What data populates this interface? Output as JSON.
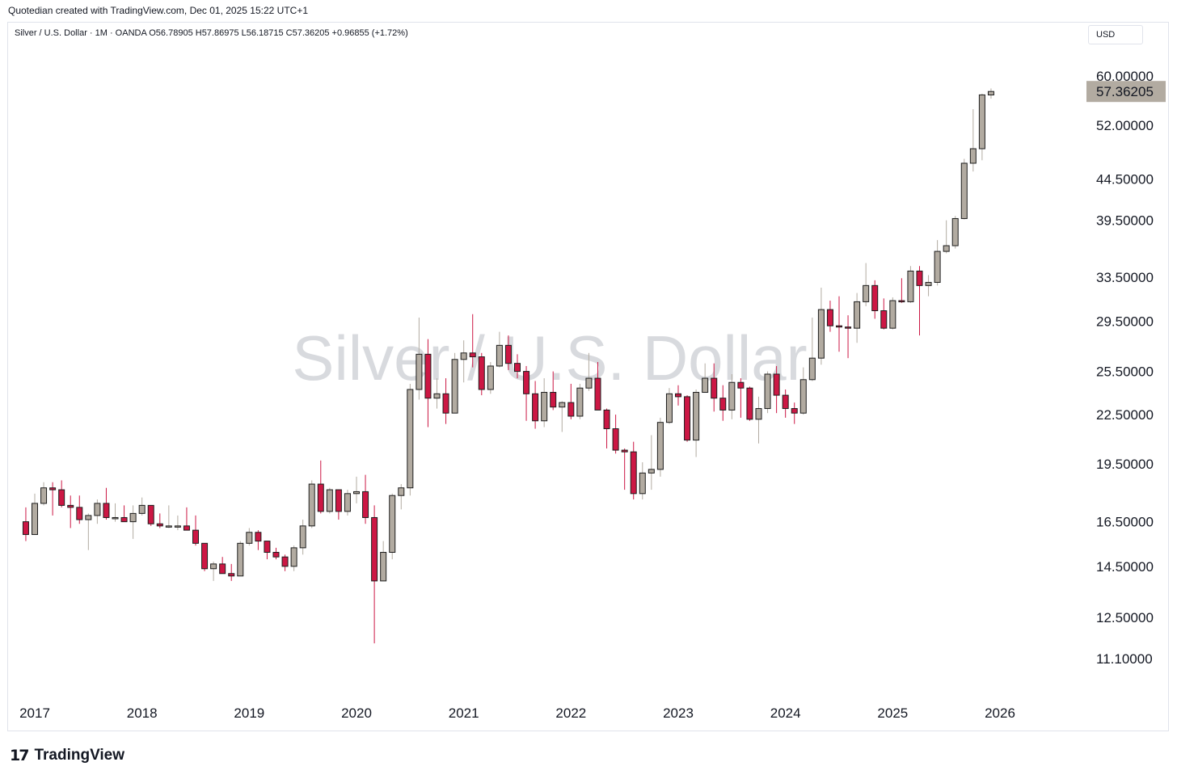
{
  "header": {
    "created_by": "Quotedian created with TradingView.com, Dec 01, 2025 15:22 UTC+1"
  },
  "legend": {
    "text": "Silver / U.S. Dollar · 1M · OANDA  O56.78905  H57.86975  L56.18715  C57.36205  +0.96855 (+1.72%)"
  },
  "currency_button": {
    "label": "USD"
  },
  "watermark": "Silver / U.S. Dollar",
  "footer": {
    "brand": "TradingView",
    "brand_mark": "17"
  },
  "colors": {
    "up": "#b2aba1",
    "down": "#cc1744",
    "border": "#1e1e1e",
    "price_tag": "#b2aba1",
    "watermark": "#d8dade"
  },
  "chart_data": {
    "type": "candlestick",
    "title": "Silver / U.S. Dollar",
    "interval": "1M",
    "source": "OANDA",
    "y_scale": "log",
    "ylim": [
      10.3,
      63.0
    ],
    "y_ticks": [
      {
        "value": 60,
        "label": "60.00000"
      },
      {
        "value": 52,
        "label": "52.00000"
      },
      {
        "value": 44.5,
        "label": "44.50000"
      },
      {
        "value": 39.5,
        "label": "39.50000"
      },
      {
        "value": 33.5,
        "label": "33.50000"
      },
      {
        "value": 29.5,
        "label": "29.50000"
      },
      {
        "value": 25.5,
        "label": "25.50000"
      },
      {
        "value": 22.5,
        "label": "22.50000"
      },
      {
        "value": 19.5,
        "label": "19.50000"
      },
      {
        "value": 16.5,
        "label": "16.50000"
      },
      {
        "value": 14.5,
        "label": "14.50000"
      },
      {
        "value": 12.5,
        "label": "12.50000"
      },
      {
        "value": 11.1,
        "label": "11.10000"
      }
    ],
    "x_ticks": [
      "2017",
      "2018",
      "2019",
      "2020",
      "2021",
      "2022",
      "2023",
      "2024",
      "2025",
      "2026"
    ],
    "last_price": {
      "value": 57.36205,
      "label": "57.36205"
    },
    "candles": [
      {
        "date": "2016-12",
        "o": 16.5,
        "h": 17.2,
        "l": 15.6,
        "c": 15.9
      },
      {
        "date": "2017-01",
        "o": 15.9,
        "h": 17.9,
        "l": 15.9,
        "c": 17.4
      },
      {
        "date": "2017-02",
        "o": 17.4,
        "h": 18.5,
        "l": 17.3,
        "c": 18.2
      },
      {
        "date": "2017-03",
        "o": 18.2,
        "h": 18.5,
        "l": 16.8,
        "c": 18.1
      },
      {
        "date": "2017-04",
        "o": 18.1,
        "h": 18.6,
        "l": 17.2,
        "c": 17.3
      },
      {
        "date": "2017-05",
        "o": 17.3,
        "h": 17.8,
        "l": 16.2,
        "c": 17.2
      },
      {
        "date": "2017-06",
        "o": 17.2,
        "h": 17.8,
        "l": 16.4,
        "c": 16.6
      },
      {
        "date": "2017-07",
        "o": 16.6,
        "h": 16.9,
        "l": 15.2,
        "c": 16.8
      },
      {
        "date": "2017-08",
        "o": 16.8,
        "h": 17.6,
        "l": 16.4,
        "c": 17.4
      },
      {
        "date": "2017-09",
        "o": 17.4,
        "h": 18.2,
        "l": 16.6,
        "c": 16.7
      },
      {
        "date": "2017-10",
        "o": 16.7,
        "h": 17.4,
        "l": 16.5,
        "c": 16.7
      },
      {
        "date": "2017-11",
        "o": 16.7,
        "h": 17.3,
        "l": 16.5,
        "c": 16.5
      },
      {
        "date": "2017-12",
        "o": 16.5,
        "h": 17.3,
        "l": 15.7,
        "c": 16.9
      },
      {
        "date": "2018-01",
        "o": 16.9,
        "h": 17.7,
        "l": 16.8,
        "c": 17.3
      },
      {
        "date": "2018-02",
        "o": 17.3,
        "h": 17.3,
        "l": 16.3,
        "c": 16.4
      },
      {
        "date": "2018-03",
        "o": 16.4,
        "h": 16.9,
        "l": 16.2,
        "c": 16.3
      },
      {
        "date": "2018-04",
        "o": 16.3,
        "h": 17.3,
        "l": 16.2,
        "c": 16.3
      },
      {
        "date": "2018-05",
        "o": 16.3,
        "h": 16.8,
        "l": 16.1,
        "c": 16.3
      },
      {
        "date": "2018-06",
        "o": 16.3,
        "h": 17.2,
        "l": 16.2,
        "c": 16.1
      },
      {
        "date": "2018-07",
        "o": 16.1,
        "h": 16.8,
        "l": 15.4,
        "c": 15.5
      },
      {
        "date": "2018-08",
        "o": 15.5,
        "h": 15.5,
        "l": 14.3,
        "c": 14.4
      },
      {
        "date": "2018-09",
        "o": 14.4,
        "h": 14.7,
        "l": 13.9,
        "c": 14.6
      },
      {
        "date": "2018-10",
        "o": 14.6,
        "h": 14.9,
        "l": 14.2,
        "c": 14.2
      },
      {
        "date": "2018-11",
        "o": 14.2,
        "h": 14.6,
        "l": 13.9,
        "c": 14.1
      },
      {
        "date": "2018-12",
        "o": 14.1,
        "h": 15.6,
        "l": 14.1,
        "c": 15.5
      },
      {
        "date": "2019-01",
        "o": 15.5,
        "h": 16.2,
        "l": 15.4,
        "c": 16.0
      },
      {
        "date": "2019-02",
        "o": 16.0,
        "h": 16.1,
        "l": 15.2,
        "c": 15.6
      },
      {
        "date": "2019-03",
        "o": 15.6,
        "h": 15.6,
        "l": 14.8,
        "c": 15.1
      },
      {
        "date": "2019-04",
        "o": 15.1,
        "h": 15.3,
        "l": 14.8,
        "c": 14.9
      },
      {
        "date": "2019-05",
        "o": 14.9,
        "h": 15.0,
        "l": 14.3,
        "c": 14.5
      },
      {
        "date": "2019-06",
        "o": 14.5,
        "h": 15.4,
        "l": 14.3,
        "c": 15.3
      },
      {
        "date": "2019-07",
        "o": 15.3,
        "h": 16.6,
        "l": 15.0,
        "c": 16.3
      },
      {
        "date": "2019-08",
        "o": 16.3,
        "h": 18.6,
        "l": 16.2,
        "c": 18.4
      },
      {
        "date": "2019-09",
        "o": 18.4,
        "h": 19.7,
        "l": 16.9,
        "c": 17.0
      },
      {
        "date": "2019-10",
        "o": 17.0,
        "h": 18.2,
        "l": 16.9,
        "c": 18.1
      },
      {
        "date": "2019-11",
        "o": 18.1,
        "h": 18.1,
        "l": 16.6,
        "c": 17.0
      },
      {
        "date": "2019-12",
        "o": 17.0,
        "h": 18.1,
        "l": 16.8,
        "c": 17.9
      },
      {
        "date": "2020-01",
        "o": 17.9,
        "h": 18.8,
        "l": 17.4,
        "c": 18.0
      },
      {
        "date": "2020-02",
        "o": 18.0,
        "h": 18.9,
        "l": 16.4,
        "c": 16.7
      },
      {
        "date": "2020-03",
        "o": 16.7,
        "h": 17.3,
        "l": 11.6,
        "c": 13.9
      },
      {
        "date": "2020-04",
        "o": 13.9,
        "h": 15.6,
        "l": 13.9,
        "c": 15.1
      },
      {
        "date": "2020-05",
        "o": 15.1,
        "h": 17.9,
        "l": 14.8,
        "c": 17.8
      },
      {
        "date": "2020-06",
        "o": 17.8,
        "h": 18.4,
        "l": 17.1,
        "c": 18.2
      },
      {
        "date": "2020-07",
        "o": 18.2,
        "h": 24.6,
        "l": 17.8,
        "c": 24.2
      },
      {
        "date": "2020-08",
        "o": 24.2,
        "h": 29.8,
        "l": 23.5,
        "c": 26.8
      },
      {
        "date": "2020-09",
        "o": 26.8,
        "h": 28.0,
        "l": 21.7,
        "c": 23.6
      },
      {
        "date": "2020-10",
        "o": 23.6,
        "h": 25.0,
        "l": 22.9,
        "c": 23.9
      },
      {
        "date": "2020-11",
        "o": 23.9,
        "h": 25.0,
        "l": 21.9,
        "c": 22.6
      },
      {
        "date": "2020-12",
        "o": 22.6,
        "h": 26.9,
        "l": 22.6,
        "c": 26.4
      },
      {
        "date": "2021-01",
        "o": 26.4,
        "h": 27.9,
        "l": 24.7,
        "c": 26.9
      },
      {
        "date": "2021-02",
        "o": 26.9,
        "h": 30.1,
        "l": 25.8,
        "c": 26.6
      },
      {
        "date": "2021-03",
        "o": 26.6,
        "h": 26.9,
        "l": 23.8,
        "c": 24.2
      },
      {
        "date": "2021-04",
        "o": 24.2,
        "h": 26.2,
        "l": 23.9,
        "c": 25.9
      },
      {
        "date": "2021-05",
        "o": 25.9,
        "h": 28.6,
        "l": 25.8,
        "c": 27.5
      },
      {
        "date": "2021-06",
        "o": 27.5,
        "h": 28.3,
        "l": 25.6,
        "c": 26.1
      },
      {
        "date": "2021-07",
        "o": 26.1,
        "h": 26.8,
        "l": 25.0,
        "c": 25.5
      },
      {
        "date": "2021-08",
        "o": 25.5,
        "h": 25.9,
        "l": 22.1,
        "c": 23.9
      },
      {
        "date": "2021-09",
        "o": 23.9,
        "h": 24.8,
        "l": 21.6,
        "c": 22.1
      },
      {
        "date": "2021-10",
        "o": 22.1,
        "h": 25.0,
        "l": 21.7,
        "c": 24.0
      },
      {
        "date": "2021-11",
        "o": 24.0,
        "h": 25.5,
        "l": 22.8,
        "c": 23.0
      },
      {
        "date": "2021-12",
        "o": 23.0,
        "h": 23.4,
        "l": 21.4,
        "c": 23.3
      },
      {
        "date": "2022-01",
        "o": 23.3,
        "h": 24.6,
        "l": 22.2,
        "c": 22.4
      },
      {
        "date": "2022-02",
        "o": 22.4,
        "h": 24.6,
        "l": 22.2,
        "c": 24.3
      },
      {
        "date": "2022-03",
        "o": 24.3,
        "h": 26.9,
        "l": 24.1,
        "c": 25.0
      },
      {
        "date": "2022-04",
        "o": 25.0,
        "h": 26.2,
        "l": 22.9,
        "c": 22.8
      },
      {
        "date": "2022-05",
        "o": 22.8,
        "h": 22.9,
        "l": 20.4,
        "c": 21.6
      },
      {
        "date": "2022-06",
        "o": 21.6,
        "h": 22.5,
        "l": 20.1,
        "c": 20.3
      },
      {
        "date": "2022-07",
        "o": 20.3,
        "h": 20.4,
        "l": 18.1,
        "c": 20.2
      },
      {
        "date": "2022-08",
        "o": 20.2,
        "h": 20.8,
        "l": 17.6,
        "c": 17.9
      },
      {
        "date": "2022-09",
        "o": 17.9,
        "h": 19.6,
        "l": 17.6,
        "c": 19.0
      },
      {
        "date": "2022-10",
        "o": 19.0,
        "h": 21.2,
        "l": 18.1,
        "c": 19.2
      },
      {
        "date": "2022-11",
        "o": 19.2,
        "h": 22.3,
        "l": 18.8,
        "c": 22.0
      },
      {
        "date": "2022-12",
        "o": 22.0,
        "h": 24.3,
        "l": 21.9,
        "c": 23.9
      },
      {
        "date": "2023-01",
        "o": 23.9,
        "h": 24.5,
        "l": 23.1,
        "c": 23.7
      },
      {
        "date": "2023-02",
        "o": 23.7,
        "h": 23.8,
        "l": 20.8,
        "c": 20.9
      },
      {
        "date": "2023-03",
        "o": 20.9,
        "h": 24.2,
        "l": 19.9,
        "c": 24.0
      },
      {
        "date": "2023-04",
        "o": 24.0,
        "h": 26.1,
        "l": 24.0,
        "c": 25.0
      },
      {
        "date": "2023-05",
        "o": 25.0,
        "h": 26.1,
        "l": 22.7,
        "c": 23.6
      },
      {
        "date": "2023-06",
        "o": 23.6,
        "h": 24.5,
        "l": 22.1,
        "c": 22.8
      },
      {
        "date": "2023-07",
        "o": 22.8,
        "h": 25.3,
        "l": 22.2,
        "c": 24.7
      },
      {
        "date": "2023-08",
        "o": 24.7,
        "h": 25.0,
        "l": 22.3,
        "c": 24.3
      },
      {
        "date": "2023-09",
        "o": 24.3,
        "h": 24.4,
        "l": 22.1,
        "c": 22.2
      },
      {
        "date": "2023-10",
        "o": 22.2,
        "h": 23.7,
        "l": 20.7,
        "c": 22.9
      },
      {
        "date": "2023-11",
        "o": 22.9,
        "h": 25.5,
        "l": 22.6,
        "c": 25.3
      },
      {
        "date": "2023-12",
        "o": 25.3,
        "h": 25.9,
        "l": 22.6,
        "c": 23.8
      },
      {
        "date": "2024-01",
        "o": 23.8,
        "h": 24.2,
        "l": 22.3,
        "c": 22.9
      },
      {
        "date": "2024-02",
        "o": 22.9,
        "h": 23.3,
        "l": 21.9,
        "c": 22.6
      },
      {
        "date": "2024-03",
        "o": 22.6,
        "h": 25.8,
        "l": 22.5,
        "c": 24.9
      },
      {
        "date": "2024-04",
        "o": 24.9,
        "h": 29.8,
        "l": 24.8,
        "c": 26.5
      },
      {
        "date": "2024-05",
        "o": 26.5,
        "h": 32.5,
        "l": 26.0,
        "c": 30.5
      },
      {
        "date": "2024-06",
        "o": 30.5,
        "h": 31.3,
        "l": 28.6,
        "c": 29.1
      },
      {
        "date": "2024-07",
        "o": 29.1,
        "h": 31.7,
        "l": 27.0,
        "c": 29.0
      },
      {
        "date": "2024-08",
        "o": 29.0,
        "h": 30.0,
        "l": 26.5,
        "c": 28.9
      },
      {
        "date": "2024-09",
        "o": 28.9,
        "h": 32.0,
        "l": 27.7,
        "c": 31.2
      },
      {
        "date": "2024-10",
        "o": 31.2,
        "h": 34.9,
        "l": 30.8,
        "c": 32.7
      },
      {
        "date": "2024-11",
        "o": 32.7,
        "h": 33.2,
        "l": 29.7,
        "c": 30.4
      },
      {
        "date": "2024-12",
        "o": 30.4,
        "h": 31.5,
        "l": 28.8,
        "c": 28.9
      },
      {
        "date": "2025-01",
        "o": 28.9,
        "h": 31.6,
        "l": 28.8,
        "c": 31.3
      },
      {
        "date": "2025-02",
        "o": 31.3,
        "h": 33.4,
        "l": 31.1,
        "c": 31.2
      },
      {
        "date": "2025-03",
        "o": 31.2,
        "h": 34.6,
        "l": 31.1,
        "c": 34.1
      },
      {
        "date": "2025-04",
        "o": 34.1,
        "h": 34.6,
        "l": 28.3,
        "c": 32.7
      },
      {
        "date": "2025-05",
        "o": 32.7,
        "h": 33.7,
        "l": 31.7,
        "c": 33.0
      },
      {
        "date": "2025-06",
        "o": 33.0,
        "h": 37.3,
        "l": 32.7,
        "c": 36.1
      },
      {
        "date": "2025-07",
        "o": 36.1,
        "h": 39.5,
        "l": 35.9,
        "c": 36.7
      },
      {
        "date": "2025-08",
        "o": 36.7,
        "h": 40.0,
        "l": 36.4,
        "c": 39.7
      },
      {
        "date": "2025-09",
        "o": 39.7,
        "h": 47.2,
        "l": 39.6,
        "c": 46.6
      },
      {
        "date": "2025-10",
        "o": 46.6,
        "h": 54.5,
        "l": 45.5,
        "c": 48.6
      },
      {
        "date": "2025-11",
        "o": 48.6,
        "h": 57.0,
        "l": 47.0,
        "c": 56.8
      },
      {
        "date": "2025-12",
        "o": 56.78905,
        "h": 57.86975,
        "l": 56.18715,
        "c": 57.36205
      }
    ]
  }
}
